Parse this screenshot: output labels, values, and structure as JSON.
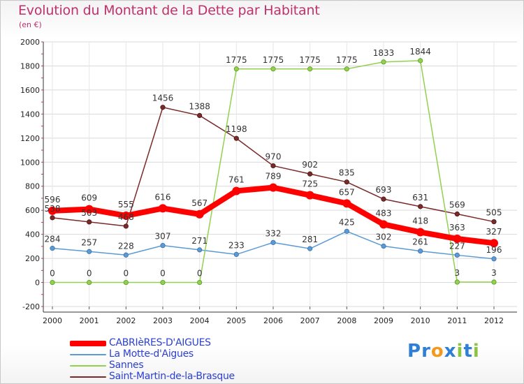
{
  "title": "Evolution du Montant de la Dette par Habitant",
  "subtitle": "(en €)",
  "colors": {
    "title": "#c0306a",
    "grid": "#dcdcdc",
    "axis": "#333333",
    "legend_text": "#2a3fd6"
  },
  "logo": {
    "text": "Proxiti",
    "letters": [
      {
        "char": "P",
        "color": "#2f7fd6"
      },
      {
        "char": "r",
        "color": "#2f7fd6"
      },
      {
        "char": "o",
        "color": "#f39a1d"
      },
      {
        "char": "x",
        "color": "#2f7fd6"
      },
      {
        "char": "i",
        "color": "#8bc53f"
      },
      {
        "char": "t",
        "color": "#2f7fd6"
      },
      {
        "char": "i",
        "color": "#8bc53f"
      }
    ]
  },
  "chart_data": {
    "type": "line",
    "title": "Evolution du Montant de la Dette par Habitant",
    "subtitle": "(en €)",
    "x": [
      "2000",
      "2001",
      "2002",
      "2003",
      "2004",
      "2005",
      "2006",
      "2007",
      "2008",
      "2009",
      "2010",
      "2011",
      "2012"
    ],
    "ylim": [
      -200,
      2000
    ],
    "yticks": [
      "-200",
      "0",
      "200",
      "400",
      "600",
      "800",
      "1000",
      "1200",
      "1400",
      "1600",
      "1800",
      "2000"
    ],
    "grid": true,
    "legend_position": "bottom-left",
    "series": [
      {
        "name": "CABRIèRES-D'AIGUES",
        "color": "#ff0000",
        "width": 8,
        "values": [
          596,
          609,
          555,
          616,
          567,
          761,
          789,
          725,
          657,
          483,
          418,
          363,
          327
        ],
        "labels": [
          "596",
          "609",
          "555",
          "616",
          "567",
          "761",
          "789",
          "725",
          "657",
          "483",
          "418",
          "363",
          "327"
        ]
      },
      {
        "name": "La Motte-d'Aigues",
        "color": "#5b9bd5",
        "width": 1.5,
        "values": [
          284,
          257,
          228,
          307,
          271,
          233,
          332,
          281,
          425,
          302,
          261,
          227,
          196
        ],
        "labels": [
          "284",
          "257",
          "228",
          "307",
          "271",
          "233",
          "332",
          "281",
          "425",
          "302",
          "261",
          "227",
          "196"
        ]
      },
      {
        "name": "Sannes",
        "color": "#92d050",
        "width": 1.5,
        "values": [
          0,
          0,
          0,
          0,
          0,
          1775,
          1775,
          1775,
          1775,
          1833,
          1844,
          3,
          3
        ],
        "labels": [
          "0",
          "0",
          "0",
          "0",
          "0",
          "1775",
          "1775",
          "1775",
          "1775",
          "1833",
          "1844",
          "3",
          "3"
        ]
      },
      {
        "name": "Saint-Martin-de-la-Brasque",
        "color": "#7b2a2a",
        "width": 1.5,
        "values": [
          538,
          503,
          468,
          1456,
          1388,
          1198,
          970,
          902,
          835,
          693,
          631,
          569,
          505
        ],
        "labels": [
          "538",
          "503",
          "468",
          "1456",
          "1388",
          "1198",
          "970",
          "902",
          "835",
          "693",
          "631",
          "569",
          "505"
        ]
      }
    ]
  }
}
